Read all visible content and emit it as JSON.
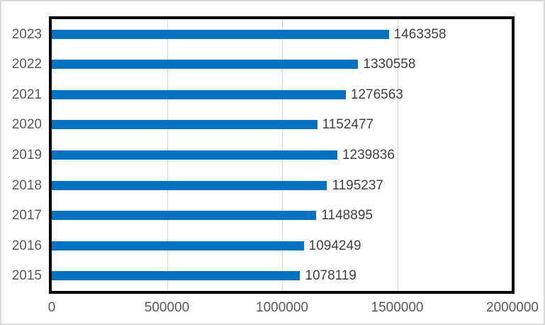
{
  "chart_data": {
    "type": "bar",
    "orientation": "horizontal",
    "title": "",
    "xlabel": "",
    "ylabel": "",
    "categories": [
      "2023",
      "2022",
      "2021",
      "2020",
      "2019",
      "2018",
      "2017",
      "2016",
      "2015"
    ],
    "values": [
      1463358,
      1330558,
      1276563,
      1152477,
      1239836,
      1195237,
      1148895,
      1094249,
      1078119
    ],
    "data_labels": [
      "1463358",
      "1330558",
      "1276563",
      "1152477",
      "1239836",
      "1195237",
      "1148895",
      "1094249",
      "1078119"
    ],
    "xlim": [
      0,
      2000000
    ],
    "x_ticks": [
      {
        "value": 0,
        "label": "0"
      },
      {
        "value": 500000,
        "label": "500000"
      },
      {
        "value": 1000000,
        "label": "1000000"
      },
      {
        "value": 1500000,
        "label": "1500000"
      },
      {
        "value": 2000000,
        "label": "2000000"
      }
    ],
    "grid": true,
    "legend": "none",
    "colors": {
      "bar": "#0572c1",
      "axis_label": "#595959",
      "data_label": "#404040",
      "gridline": "#d9d9d9",
      "plot_border": "#000000",
      "chart_border": "#d9d9d9",
      "background": "#ffffff"
    }
  }
}
